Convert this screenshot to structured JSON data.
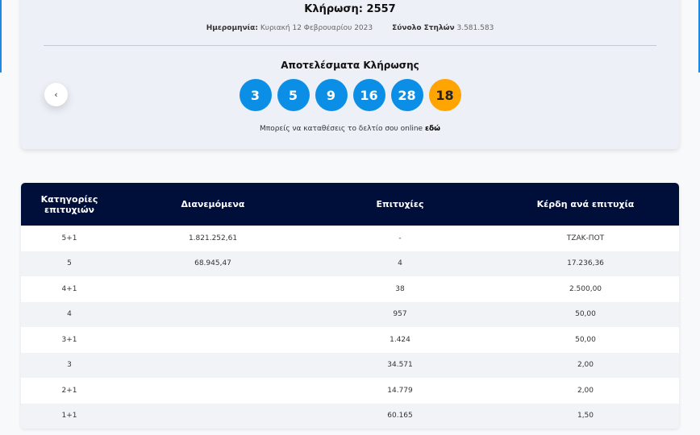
{
  "draw": {
    "title": "Κλήρωση: 2557",
    "date_label": "Ημερομηνία:",
    "date_value": "Κυριακή 12 Φεβρουαρίου 2023",
    "columns_label": "Σύνολο Στηλών",
    "columns_value": "3.581.583",
    "results_title": "Αποτελέσματα Κλήρωσης",
    "numbers": [
      "3",
      "5",
      "9",
      "16",
      "28"
    ],
    "joker": "18",
    "note_text": "Μπορείς να καταθέσεις το δελτίο σου online",
    "note_link": "εδώ",
    "prev_icon": "‹"
  },
  "colors": {
    "ball": "#0a8ee6",
    "joker": "#ffa400",
    "header": "#000e3a"
  },
  "table": {
    "headers": [
      "Κατηγορίες επιτυχιών",
      "Διανεμόμενα",
      "Επιτυχίες",
      "Κέρδη ανά επιτυχία"
    ],
    "rows": [
      [
        "5+1",
        "1.821.252,61",
        "-",
        "ΤΖΑΚ-ΠΟΤ"
      ],
      [
        "5",
        "68.945,47",
        "4",
        "17.236,36"
      ],
      [
        "4+1",
        "",
        "38",
        "2.500,00"
      ],
      [
        "4",
        "",
        "957",
        "50,00"
      ],
      [
        "3+1",
        "",
        "1.424",
        "50,00"
      ],
      [
        "3",
        "",
        "34.571",
        "2,00"
      ],
      [
        "2+1",
        "",
        "14.779",
        "2,00"
      ],
      [
        "1+1",
        "",
        "60.165",
        "1,50"
      ]
    ]
  }
}
